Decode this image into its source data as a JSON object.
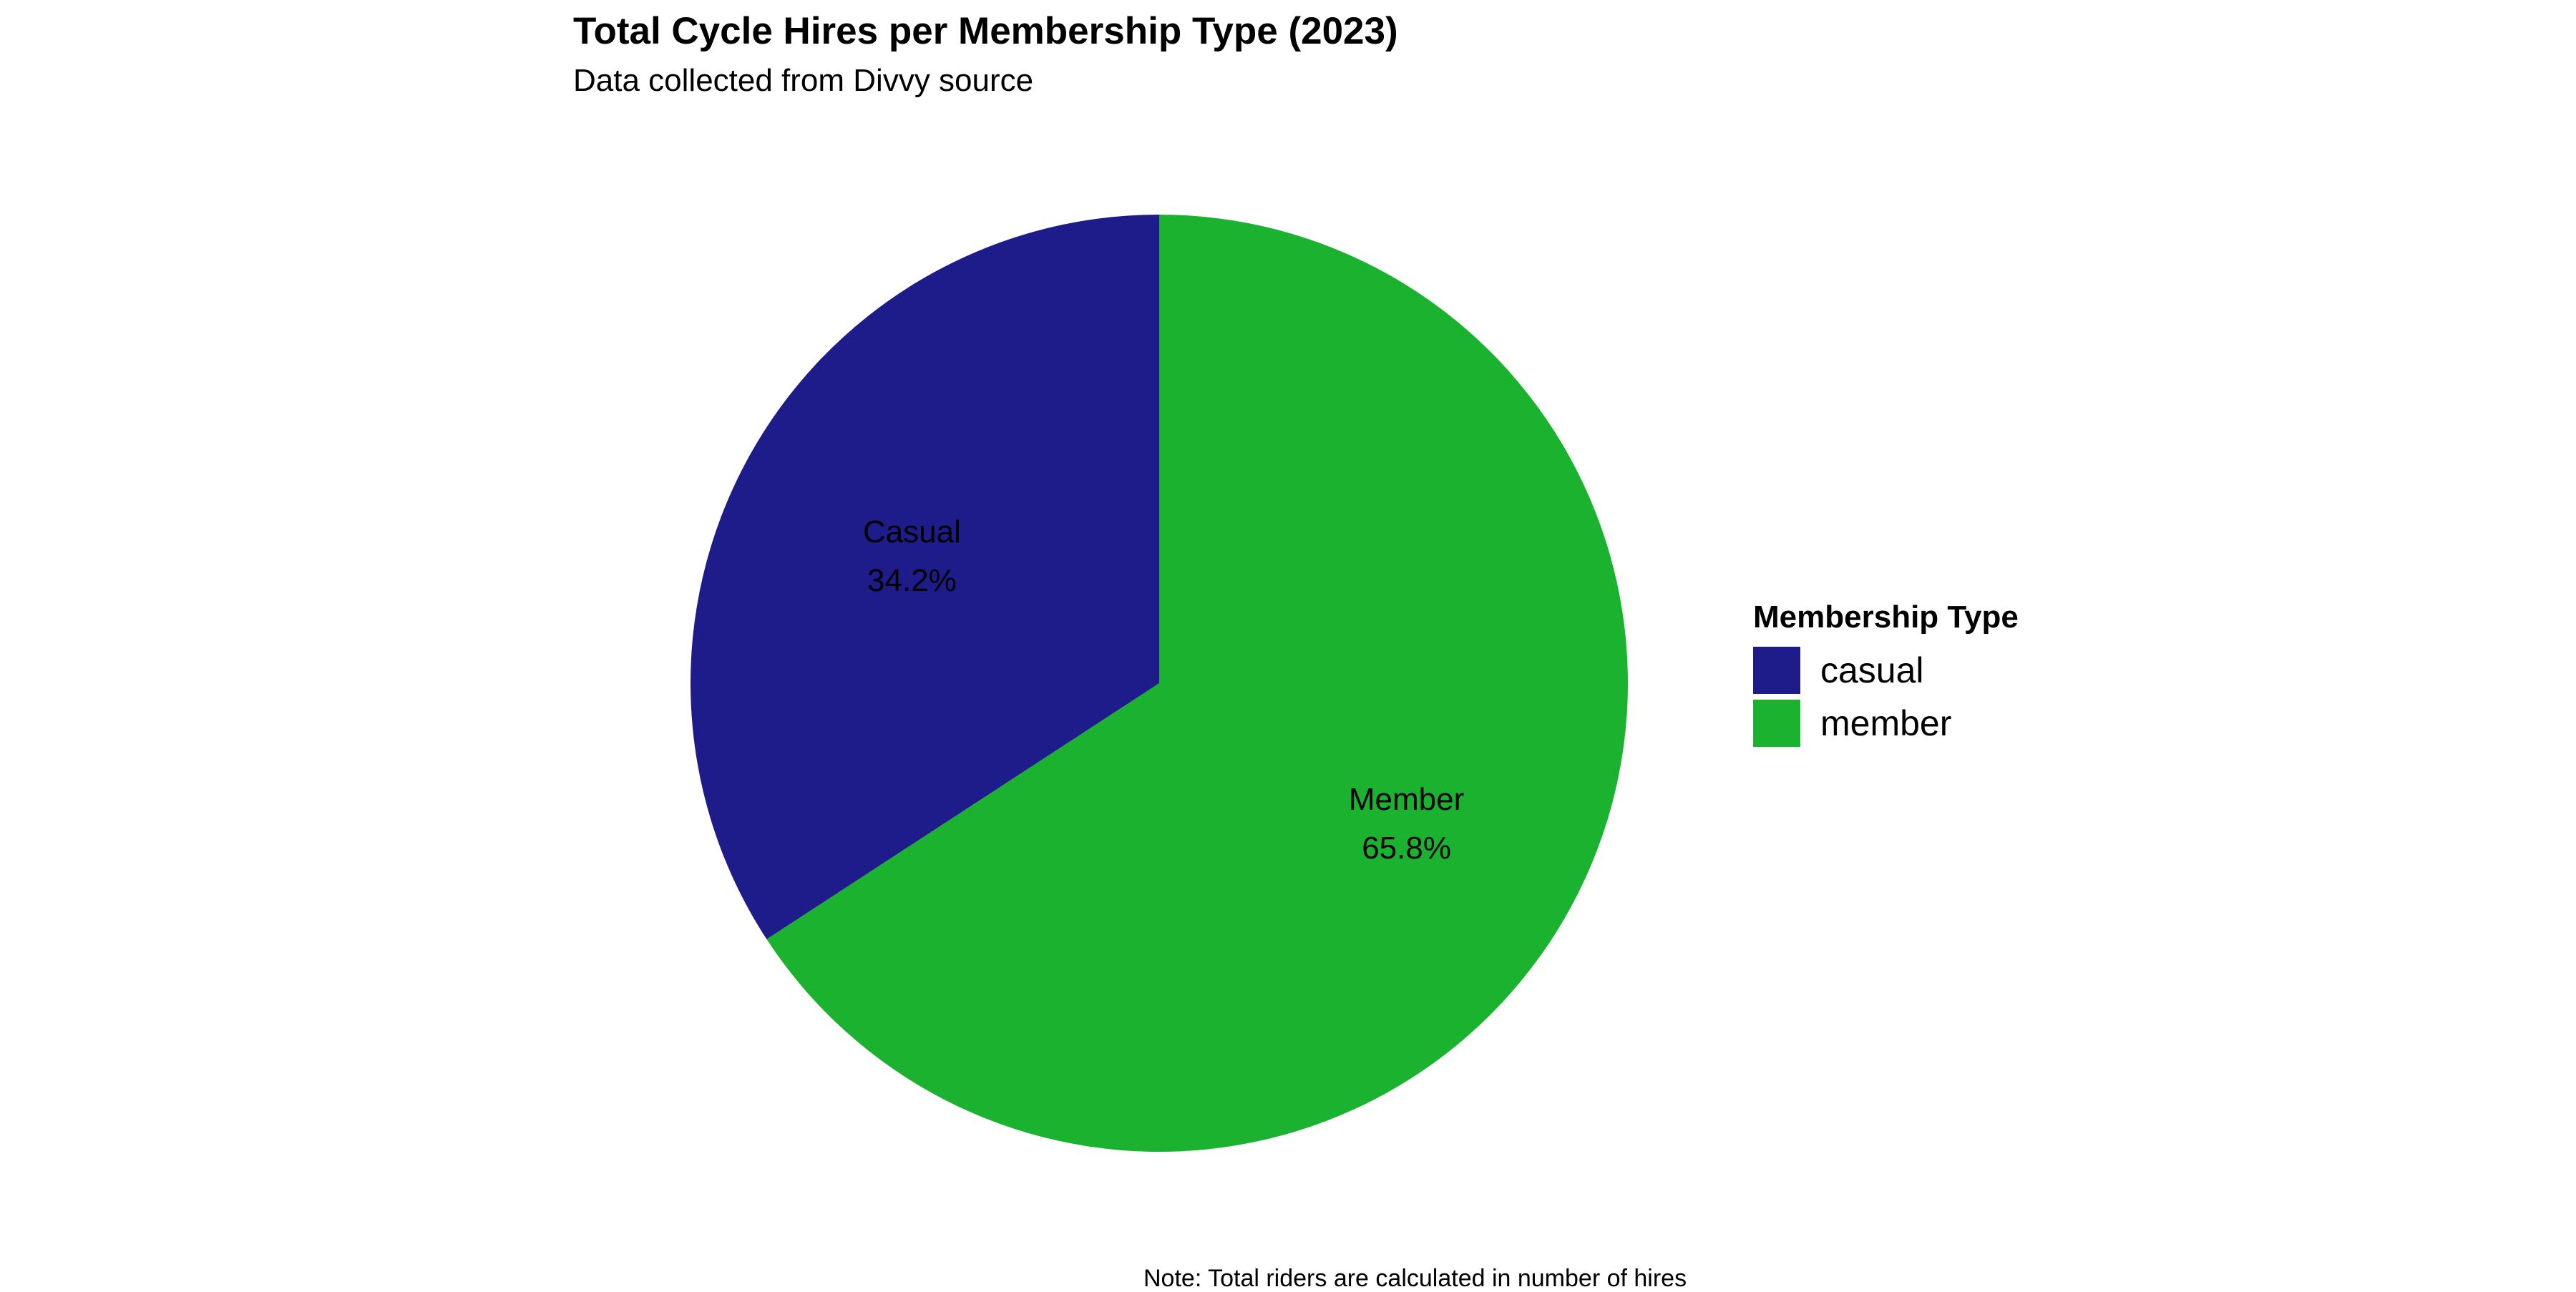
{
  "chart_data": {
    "type": "pie",
    "title": "Total Cycle Hires per Membership Type (2023)",
    "subtitle": "Data collected from Divvy source",
    "note": "Note: Total riders are calculated in number of hires",
    "slices": [
      {
        "category": "Casual",
        "percent": 34.2,
        "percent_label": "34.2%",
        "color": "#1e1b8a"
      },
      {
        "category": "Member",
        "percent": 65.8,
        "percent_label": "65.8%",
        "color": "#1bb230"
      }
    ],
    "legend": {
      "title": "Membership Type",
      "position": "right",
      "entries": [
        {
          "label": "casual",
          "color": "#1e1b8a"
        },
        {
          "label": "member",
          "color": "#1bb230"
        }
      ]
    }
  }
}
